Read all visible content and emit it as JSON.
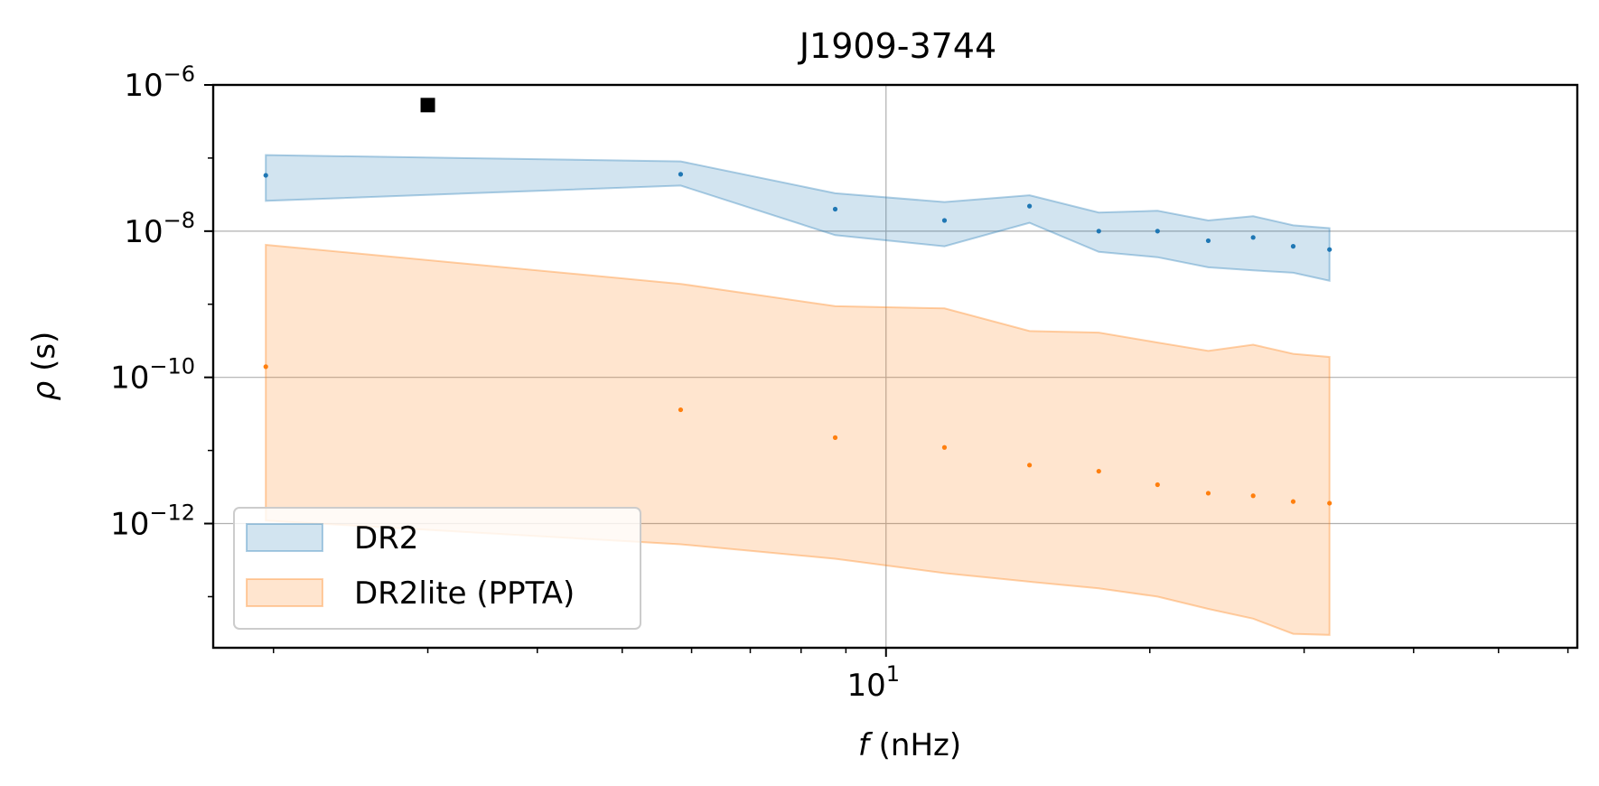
{
  "chart_data": {
    "type": "area",
    "title": "J1909-3744",
    "xlabel": {
      "symbol": "f",
      "unit": " (nHz)"
    },
    "ylabel": {
      "symbol": "ρ",
      "unit": " (s)"
    },
    "xscale": "log",
    "yscale": "log",
    "xlim": [
      1.707,
      61.5
    ],
    "ylim": [
      2e-14,
      1e-06
    ],
    "grid": true,
    "legend_position": "lower-left",
    "xticks": [
      {
        "value": 10,
        "base": "10",
        "exp": "1"
      }
    ],
    "yticks": [
      {
        "value": 1e-06,
        "base": "10",
        "exp": "−6"
      },
      {
        "value": 1e-08,
        "base": "10",
        "exp": "−8"
      },
      {
        "value": 1e-10,
        "base": "10",
        "exp": "−10"
      },
      {
        "value": 1e-12,
        "base": "10",
        "exp": "−12"
      }
    ],
    "series": [
      {
        "name": "DR2",
        "color": "#1f77b4",
        "fill_opacity": 0.2,
        "points": [
          {
            "x": 1.96,
            "y": 5.8e-08,
            "lo": 2.6e-08,
            "hi": 1.1e-07
          },
          {
            "x": 5.83,
            "y": 6e-08,
            "lo": 4.2e-08,
            "hi": 9e-08
          },
          {
            "x": 8.75,
            "y": 2e-08,
            "lo": 8.8e-09,
            "hi": 3.3e-08
          },
          {
            "x": 11.66,
            "y": 1.4e-08,
            "lo": 6.2e-09,
            "hi": 2.5e-08
          },
          {
            "x": 14.58,
            "y": 2.2e-08,
            "lo": 1.3e-08,
            "hi": 3.1e-08
          },
          {
            "x": 17.49,
            "y": 1e-08,
            "lo": 5.2e-09,
            "hi": 1.8e-08
          },
          {
            "x": 20.41,
            "y": 1e-08,
            "lo": 4.4e-09,
            "hi": 1.9e-08
          },
          {
            "x": 23.32,
            "y": 7.4e-09,
            "lo": 3.2e-09,
            "hi": 1.4e-08
          },
          {
            "x": 26.24,
            "y": 8.2e-09,
            "lo": 2.9e-09,
            "hi": 1.6e-08
          },
          {
            "x": 29.15,
            "y": 6.2e-09,
            "lo": 2.7e-09,
            "hi": 1.2e-08
          },
          {
            "x": 32.07,
            "y": 5.6e-09,
            "lo": 2.1e-09,
            "hi": 1.1e-08
          }
        ]
      },
      {
        "name": "DR2lite (PPTA)",
        "color": "#ff7f0e",
        "fill_opacity": 0.2,
        "points": [
          {
            "x": 1.96,
            "y": 1.4e-10,
            "lo": 1.1e-12,
            "hi": 6.5e-09
          },
          {
            "x": 5.83,
            "y": 3.6e-11,
            "lo": 5.2e-13,
            "hi": 1.9e-09
          },
          {
            "x": 8.75,
            "y": 1.5e-11,
            "lo": 3.3e-13,
            "hi": 9.4e-10
          },
          {
            "x": 11.66,
            "y": 1.1e-11,
            "lo": 2.1e-13,
            "hi": 8.8e-10
          },
          {
            "x": 14.58,
            "y": 6.3e-12,
            "lo": 1.6e-13,
            "hi": 4.3e-10
          },
          {
            "x": 17.49,
            "y": 5.2e-12,
            "lo": 1.3e-13,
            "hi": 4.1e-10
          },
          {
            "x": 20.41,
            "y": 3.4e-12,
            "lo": 1e-13,
            "hi": 3e-10
          },
          {
            "x": 23.32,
            "y": 2.6e-12,
            "lo": 6.8e-14,
            "hi": 2.3e-10
          },
          {
            "x": 26.24,
            "y": 2.4e-12,
            "lo": 5e-14,
            "hi": 2.8e-10
          },
          {
            "x": 29.15,
            "y": 2e-12,
            "lo": 3.1e-14,
            "hi": 2.1e-10
          },
          {
            "x": 32.07,
            "y": 1.9e-12,
            "lo": 3e-14,
            "hi": 1.9e-10
          }
        ]
      }
    ],
    "extra_points": [
      {
        "x": 3.0,
        "y": 5.3e-07,
        "color": "#000000",
        "marker": "square"
      }
    ]
  }
}
